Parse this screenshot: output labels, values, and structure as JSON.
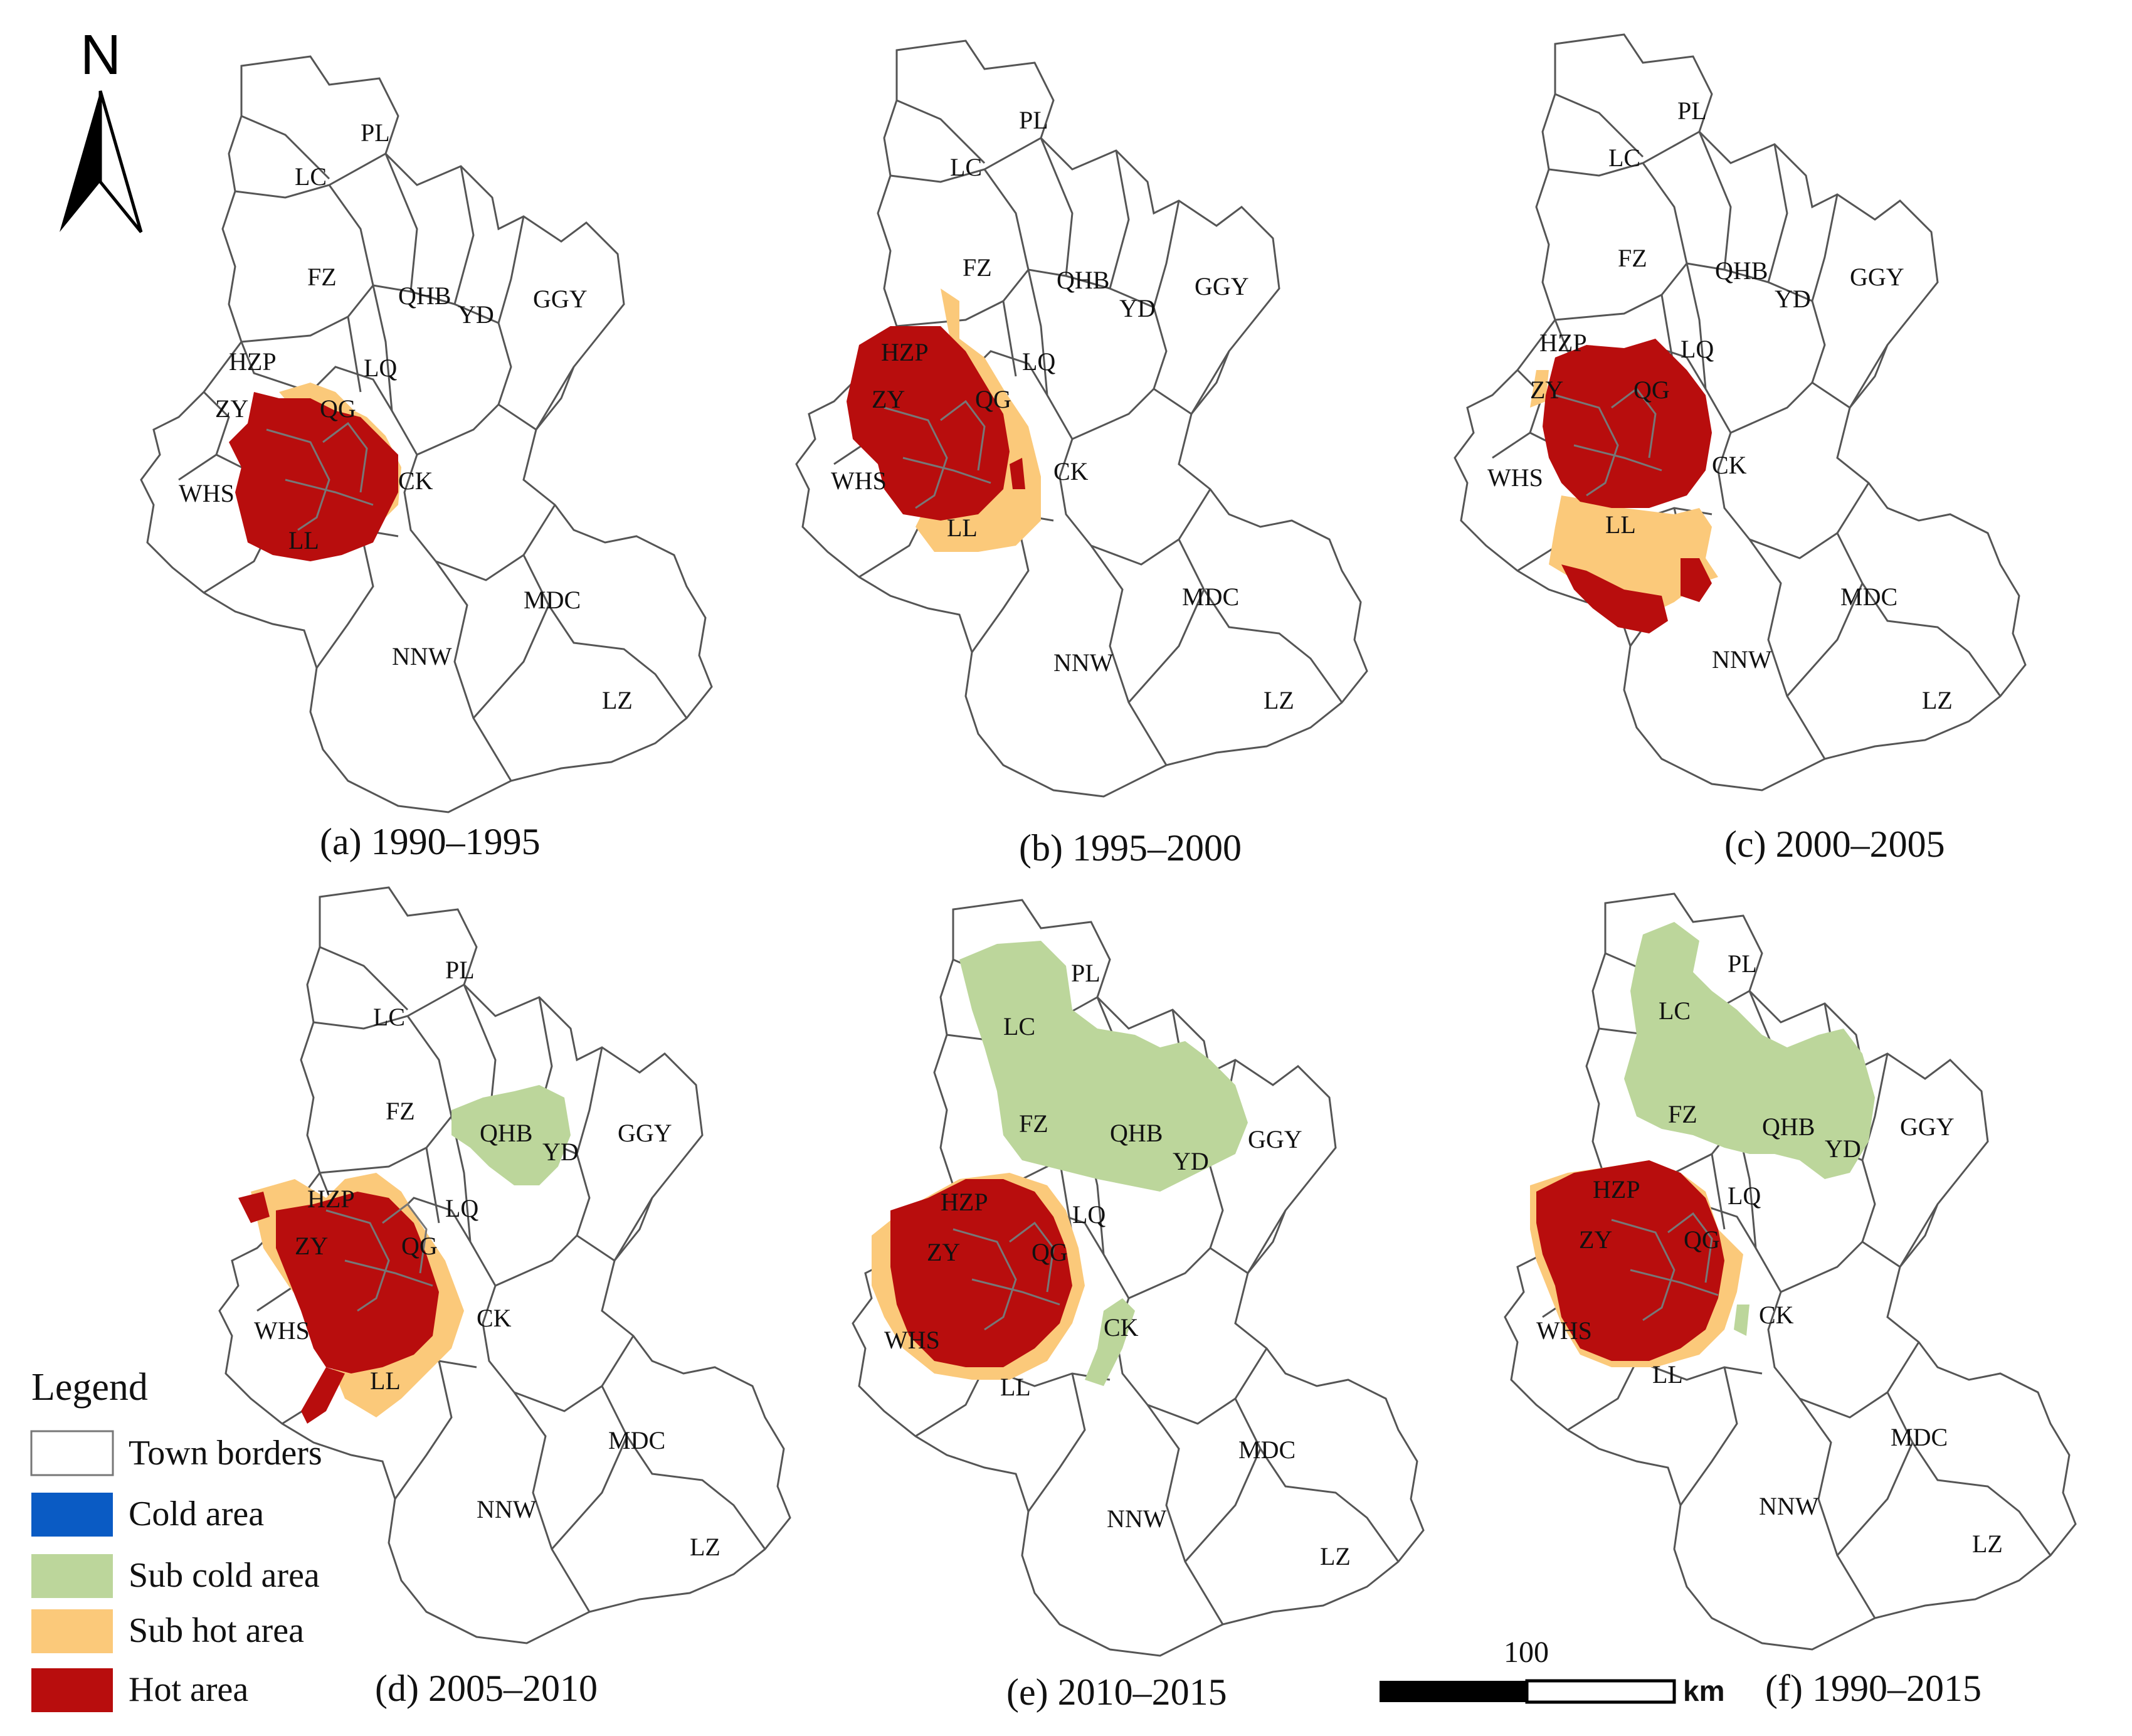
{
  "panels": [
    {
      "caption": "(a) 1990–1995",
      "towns": {
        "PL": "PL",
        "LC": "LC",
        "FZ": "FZ",
        "QHB": "QHB",
        "YD": "YD",
        "GGY": "GGY",
        "HZP": "HZP",
        "LQ": "LQ",
        "ZY": "ZY",
        "QG": "QG",
        "WHS": "WHS",
        "CK": "CK",
        "LL": "LL",
        "MDC": "MDC",
        "NNW": "NNW",
        "LZ": "LZ"
      },
      "classification": {
        "hot": [
          "HZP",
          "ZY",
          "QG",
          "WHS",
          "LL",
          "CK"
        ],
        "sub_hot": [
          "LQ",
          "CK"
        ],
        "sub_cold": [],
        "cold": []
      }
    },
    {
      "caption": "(b) 1995–2000",
      "towns": {
        "PL": "PL",
        "LC": "LC",
        "FZ": "FZ",
        "QHB": "QHB",
        "YD": "YD",
        "GGY": "GGY",
        "HZP": "HZP",
        "LQ": "LQ",
        "ZY": "ZY",
        "QG": "QG",
        "WHS": "WHS",
        "CK": "CK",
        "LL": "LL",
        "MDC": "MDC",
        "NNW": "NNW",
        "LZ": "LZ"
      },
      "classification": {
        "hot": [
          "HZP",
          "ZY",
          "QG",
          "WHS"
        ],
        "sub_hot": [
          "FZ",
          "LL",
          "CK"
        ],
        "sub_cold": [],
        "cold": []
      }
    },
    {
      "caption": "(c) 2000–2005",
      "towns": {
        "PL": "PL",
        "LC": "LC",
        "FZ": "FZ",
        "QHB": "QHB",
        "YD": "YD",
        "GGY": "GGY",
        "HZP": "HZP",
        "LQ": "LQ",
        "ZY": "ZY",
        "QG": "QG",
        "WHS": "WHS",
        "CK": "CK",
        "LL": "LL",
        "MDC": "MDC",
        "NNW": "NNW",
        "LZ": "LZ"
      },
      "classification": {
        "hot": [
          "HZP",
          "ZY",
          "QG",
          "LL"
        ],
        "sub_hot": [
          "LL",
          "CK"
        ],
        "sub_cold": [],
        "cold": []
      }
    },
    {
      "caption": "(d) 2005–2010",
      "towns": {
        "PL": "PL",
        "LC": "LC",
        "FZ": "FZ",
        "QHB": "QHB",
        "YD": "YD",
        "GGY": "GGY",
        "HZP": "HZP",
        "LQ": "LQ",
        "ZY": "ZY",
        "QG": "QG",
        "WHS": "WHS",
        "CK": "CK",
        "LL": "LL",
        "MDC": "MDC",
        "NNW": "NNW",
        "LZ": "LZ"
      },
      "classification": {
        "hot": [
          "HZP",
          "ZY",
          "QG",
          "WHS",
          "LL"
        ],
        "sub_hot": [
          "HZP",
          "LQ",
          "CK",
          "LL"
        ],
        "sub_cold": [
          "QHB",
          "YD"
        ],
        "cold": []
      }
    },
    {
      "caption": "(e) 2010–2015",
      "towns": {
        "PL": "PL",
        "LC": "LC",
        "FZ": "FZ",
        "QHB": "QHB",
        "YD": "YD",
        "GGY": "GGY",
        "HZP": "HZP",
        "LQ": "LQ",
        "ZY": "ZY",
        "QG": "QG",
        "WHS": "WHS",
        "CK": "CK",
        "LL": "LL",
        "MDC": "MDC",
        "NNW": "NNW",
        "LZ": "LZ"
      },
      "classification": {
        "hot": [
          "HZP",
          "LQ",
          "ZY",
          "QG",
          "WHS"
        ],
        "sub_hot": [
          "ZY",
          "WHS",
          "LL"
        ],
        "sub_cold": [
          "PL",
          "LC",
          "FZ",
          "QHB",
          "YD",
          "GGY",
          "CK"
        ],
        "cold": []
      }
    },
    {
      "caption": "(f) 1990–2015",
      "towns": {
        "PL": "PL",
        "LC": "LC",
        "FZ": "FZ",
        "QHB": "QHB",
        "YD": "YD",
        "GGY": "GGY",
        "HZP": "HZP",
        "LQ": "LQ",
        "ZY": "ZY",
        "QG": "QG",
        "WHS": "WHS",
        "CK": "CK",
        "LL": "LL",
        "MDC": "MDC",
        "NNW": "NNW",
        "LZ": "LZ"
      },
      "classification": {
        "hot": [
          "HZP",
          "LQ",
          "ZY",
          "QG",
          "WHS",
          "LL"
        ],
        "sub_hot": [
          "ZY",
          "CK",
          "LL"
        ],
        "sub_cold": [
          "PL",
          "LC",
          "FZ",
          "QHB",
          "YD",
          "GGY",
          "CK"
        ],
        "cold": []
      }
    }
  ],
  "north_arrow": {
    "letter": "N"
  },
  "legend": {
    "title": "Legend",
    "items": [
      {
        "label": "Town borders",
        "color": "#ffffff"
      },
      {
        "label": "Cold area",
        "color": "#0a5bc4"
      },
      {
        "label": "Sub cold area",
        "color": "#bcd69b"
      },
      {
        "label": "Sub hot area",
        "color": "#fbc97a"
      },
      {
        "label": "Hot area",
        "color": "#b80d0d"
      }
    ]
  },
  "scale_bar": {
    "value": "100",
    "unit": "km"
  },
  "colors": {
    "hot": "#b80d0d",
    "sub_hot": "#fbc97a",
    "sub_cold": "#bcd69b",
    "cold": "#0a5bc4",
    "border": "#555555"
  }
}
